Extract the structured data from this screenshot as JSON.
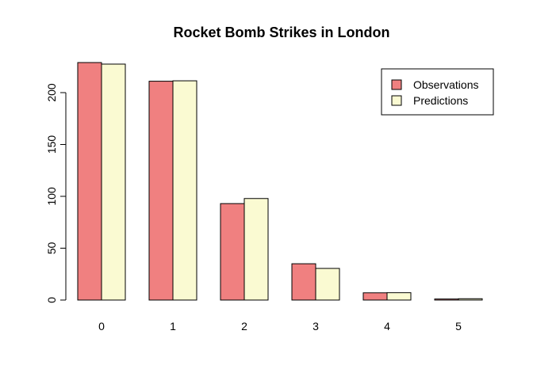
{
  "chart_data": {
    "type": "bar",
    "title": "Rocket Bomb Strikes in London",
    "xlabel": "",
    "ylabel": "",
    "categories": [
      "0",
      "1",
      "2",
      "3",
      "4",
      "5"
    ],
    "series": [
      {
        "name": "Observations",
        "values": [
          229,
          211,
          93,
          35,
          7,
          1
        ],
        "color": "#f08080"
      },
      {
        "name": "Predictions",
        "values": [
          227.5,
          211.4,
          97.9,
          30.5,
          7.1,
          1.3
        ],
        "color": "#fafad2"
      }
    ],
    "ylim": [
      0,
      229
    ],
    "yticks": [
      "0",
      "50",
      "100",
      "150",
      "200"
    ],
    "grid": false,
    "legend_position": "top-right"
  }
}
